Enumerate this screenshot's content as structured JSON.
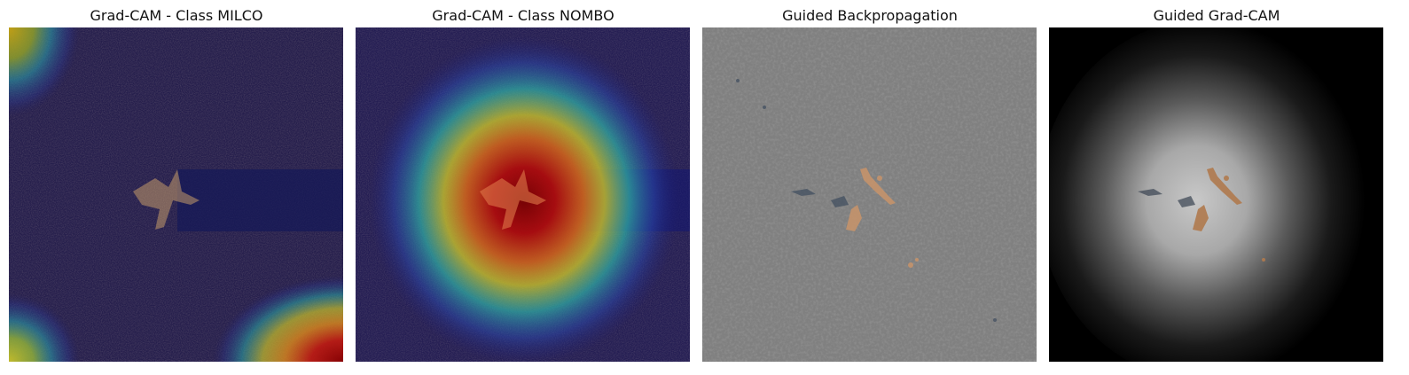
{
  "figure": {
    "panels": [
      {
        "title": "Grad-CAM - Class MILCO",
        "kind": "gradcam-milco"
      },
      {
        "title": "Grad-CAM - Class NOMBO",
        "kind": "gradcam-nombo"
      },
      {
        "title": "Guided Backpropagation",
        "kind": "guided-backprop"
      },
      {
        "title": "Guided Grad-CAM",
        "kind": "guided-gradcam"
      }
    ]
  },
  "colors": {
    "sonar_background": "#2a1e44",
    "backprop_gray": "#808080",
    "guided_black": "#000000",
    "heat_red": "#8b0000",
    "heat_yellow": "#e6e600",
    "heat_cyan": "#2fb3b3",
    "heat_blue": "#1c1c8a"
  }
}
